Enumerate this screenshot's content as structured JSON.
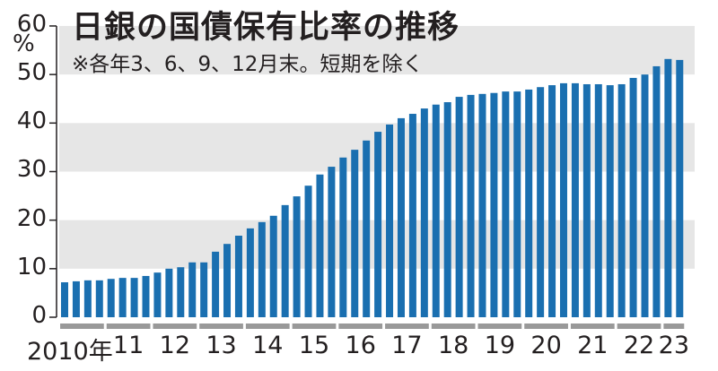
{
  "header": {
    "title": "日銀の国債保有比率の推移",
    "subtitle": "※各年3、6、9、12月末。短期を除く",
    "unit": "%"
  },
  "colors": {
    "bar": "#1a6fb0",
    "band": "#e6e6e6",
    "year_segment": "#999999",
    "axis": "#231f20"
  },
  "chart_data": {
    "type": "bar",
    "title": "日銀の国債保有比率の推移",
    "subtitle": "※各年3、6、9、12月末。短期を除く",
    "xlabel": "",
    "ylabel": "%",
    "ylim": [
      0,
      60
    ],
    "yticks": [
      0,
      10,
      20,
      30,
      40,
      50,
      60
    ],
    "grid": "alternating horizontal bands",
    "legend": null,
    "year_labels": [
      "2010年",
      "11",
      "12",
      "13",
      "14",
      "15",
      "16",
      "17",
      "18",
      "19",
      "20",
      "21",
      "22",
      "23"
    ],
    "categories": [
      "2010-03",
      "2010-06",
      "2010-09",
      "2010-12",
      "2011-03",
      "2011-06",
      "2011-09",
      "2011-12",
      "2012-03",
      "2012-06",
      "2012-09",
      "2012-12",
      "2013-03",
      "2013-06",
      "2013-09",
      "2013-12",
      "2014-03",
      "2014-06",
      "2014-09",
      "2014-12",
      "2015-03",
      "2015-06",
      "2015-09",
      "2015-12",
      "2016-03",
      "2016-06",
      "2016-09",
      "2016-12",
      "2017-03",
      "2017-06",
      "2017-09",
      "2017-12",
      "2018-03",
      "2018-06",
      "2018-09",
      "2018-12",
      "2019-03",
      "2019-06",
      "2019-09",
      "2019-12",
      "2020-03",
      "2020-06",
      "2020-09",
      "2020-12",
      "2021-03",
      "2021-06",
      "2021-09",
      "2021-12",
      "2022-03",
      "2022-06",
      "2022-09",
      "2022-12",
      "2023-03",
      "2023-06"
    ],
    "values": [
      7.2,
      7.4,
      7.6,
      7.6,
      7.9,
      8.1,
      8.1,
      8.5,
      9.2,
      10.0,
      10.3,
      11.3,
      11.3,
      13.5,
      15.1,
      16.8,
      18.3,
      19.6,
      20.9,
      23.1,
      24.9,
      27.1,
      29.4,
      31.0,
      32.9,
      34.5,
      36.4,
      38.2,
      39.7,
      41.0,
      41.9,
      43.0,
      43.8,
      44.3,
      45.4,
      45.8,
      46.0,
      46.2,
      46.5,
      46.5,
      46.9,
      47.4,
      47.8,
      48.2,
      48.2,
      48.0,
      48.0,
      47.8,
      48.0,
      49.3,
      50.0,
      51.7,
      53.2,
      53.0
    ]
  }
}
